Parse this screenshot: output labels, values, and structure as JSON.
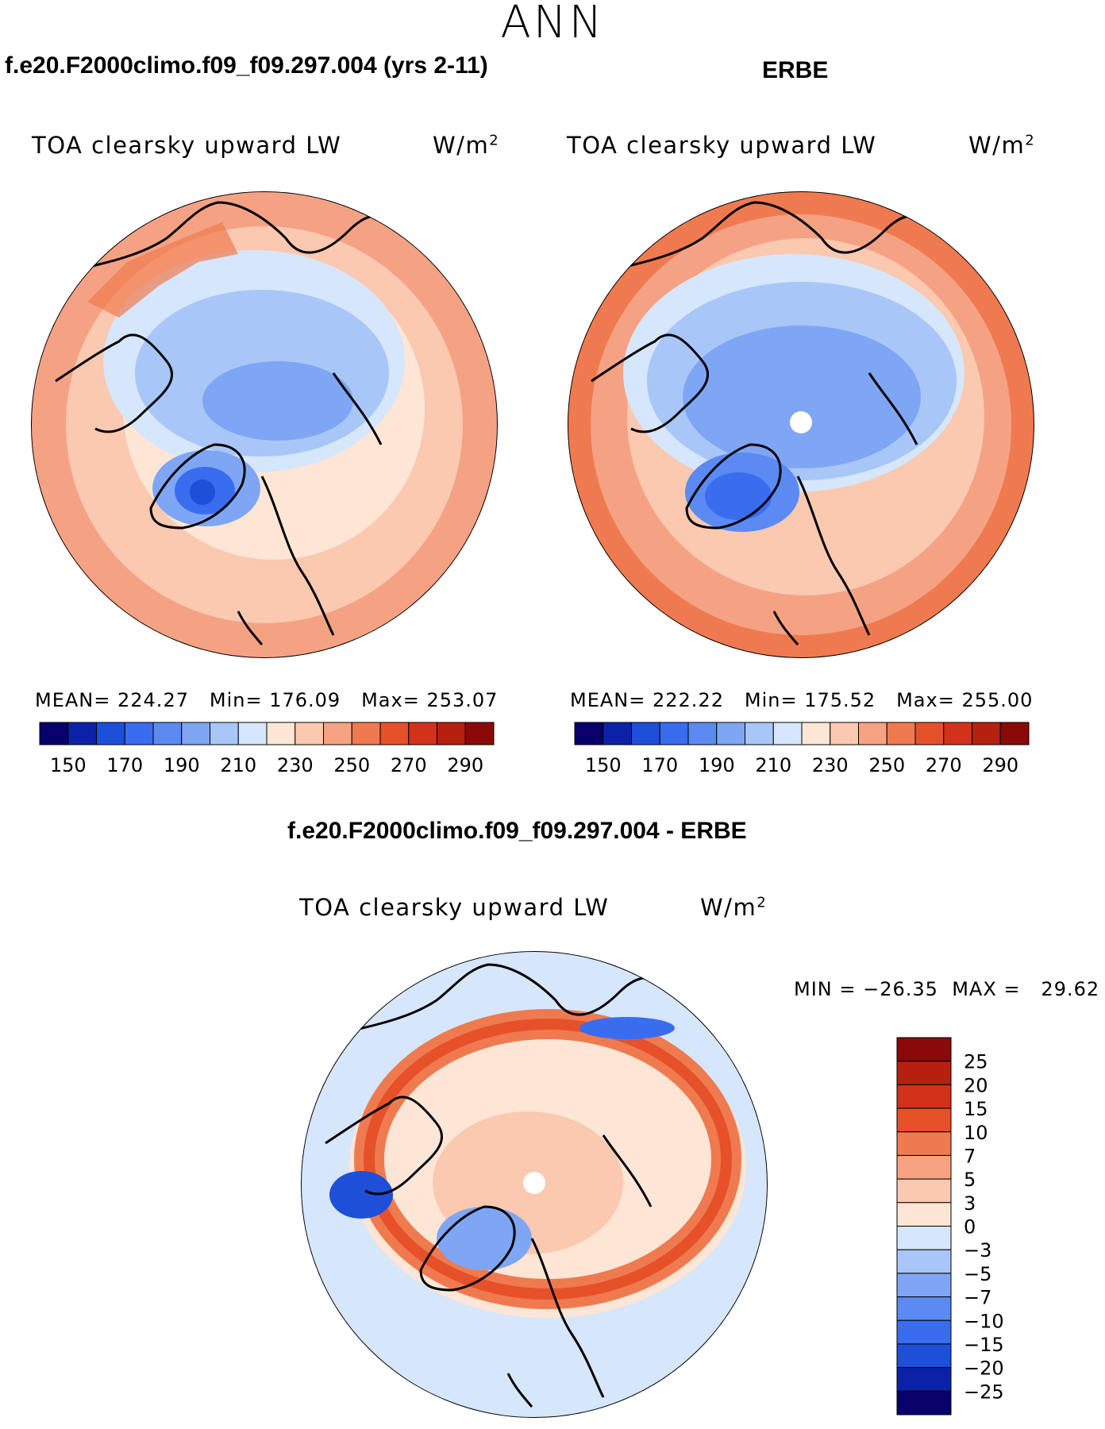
{
  "page": {
    "title": "ANN",
    "case_name": "f.e20.F2000climo.f09_f09.297.004 (yrs 2-11)",
    "obs_name": "ERBE",
    "diff_title": "f.e20.F2000climo.f09_f09.297.004 - ERBE"
  },
  "chart_data": [
    {
      "type": "heatmap",
      "projection": "polar-stereographic-north",
      "title": "TOA clearsky upward LW",
      "units_base": "W/m",
      "units_exp": "2",
      "stats": {
        "mean_label": "MEAN=",
        "mean": "224.27",
        "min_label": "Min=",
        "min": "176.09",
        "max_label": "Max=",
        "max": "253.07"
      },
      "colorbar": {
        "levels": [
          150,
          160,
          170,
          180,
          190,
          200,
          210,
          220,
          230,
          240,
          250,
          260,
          270,
          280,
          290
        ],
        "tick_labels": [
          "150",
          "170",
          "190",
          "210",
          "230",
          "250",
          "270",
          "290"
        ],
        "colors": [
          "#08006b",
          "#0b22a8",
          "#1d4fd9",
          "#3a6cf0",
          "#5a8af2",
          "#7ea6f5",
          "#a8c6f8",
          "#d6e6fb",
          "#fde6d6",
          "#fbc8b0",
          "#f6a283",
          "#f07a50",
          "#e6512a",
          "#d2311a",
          "#b5200f",
          "#8b0a07"
        ]
      }
    },
    {
      "type": "heatmap",
      "projection": "polar-stereographic-north",
      "title": "TOA clearsky upward LW",
      "units_base": "W/m",
      "units_exp": "2",
      "stats": {
        "mean_label": "MEAN=",
        "mean": "222.22",
        "min_label": "Min=",
        "min": "175.52",
        "max_label": "Max=",
        "max": "255.00"
      },
      "colorbar": {
        "levels": [
          150,
          160,
          170,
          180,
          190,
          200,
          210,
          220,
          230,
          240,
          250,
          260,
          270,
          280,
          290
        ],
        "tick_labels": [
          "150",
          "170",
          "190",
          "210",
          "230",
          "250",
          "270",
          "290"
        ],
        "colors": [
          "#08006b",
          "#0b22a8",
          "#1d4fd9",
          "#3a6cf0",
          "#5a8af2",
          "#7ea6f5",
          "#a8c6f8",
          "#d6e6fb",
          "#fde6d6",
          "#fbc8b0",
          "#f6a283",
          "#f07a50",
          "#e6512a",
          "#d2311a",
          "#b5200f",
          "#8b0a07"
        ]
      }
    },
    {
      "type": "heatmap",
      "projection": "polar-stereographic-north",
      "title": "TOA clearsky upward LW",
      "units_base": "W/m",
      "units_exp": "2",
      "stats": {
        "min_label": "MIN =",
        "min": "−26.35",
        "max_label": "MAX =",
        "max": "29.62"
      },
      "colorbar": {
        "levels": [
          -25,
          -20,
          -15,
          -10,
          -7,
          -5,
          -3,
          0,
          3,
          5,
          7,
          10,
          15,
          20,
          25
        ],
        "tick_labels": [
          "25",
          "20",
          "15",
          "10",
          "7",
          "5",
          "3",
          "0",
          "−3",
          "−5",
          "−7",
          "−10",
          "−15",
          "−20",
          "−25"
        ],
        "colors": [
          "#08006b",
          "#0b22a8",
          "#1d4fd9",
          "#3a6cf0",
          "#5a8af2",
          "#7ea6f5",
          "#a8c6f8",
          "#d6e6fb",
          "#fde6d6",
          "#fbc8b0",
          "#f6a283",
          "#f07a50",
          "#e6512a",
          "#d2311a",
          "#b5200f",
          "#8b0a07"
        ]
      }
    }
  ]
}
